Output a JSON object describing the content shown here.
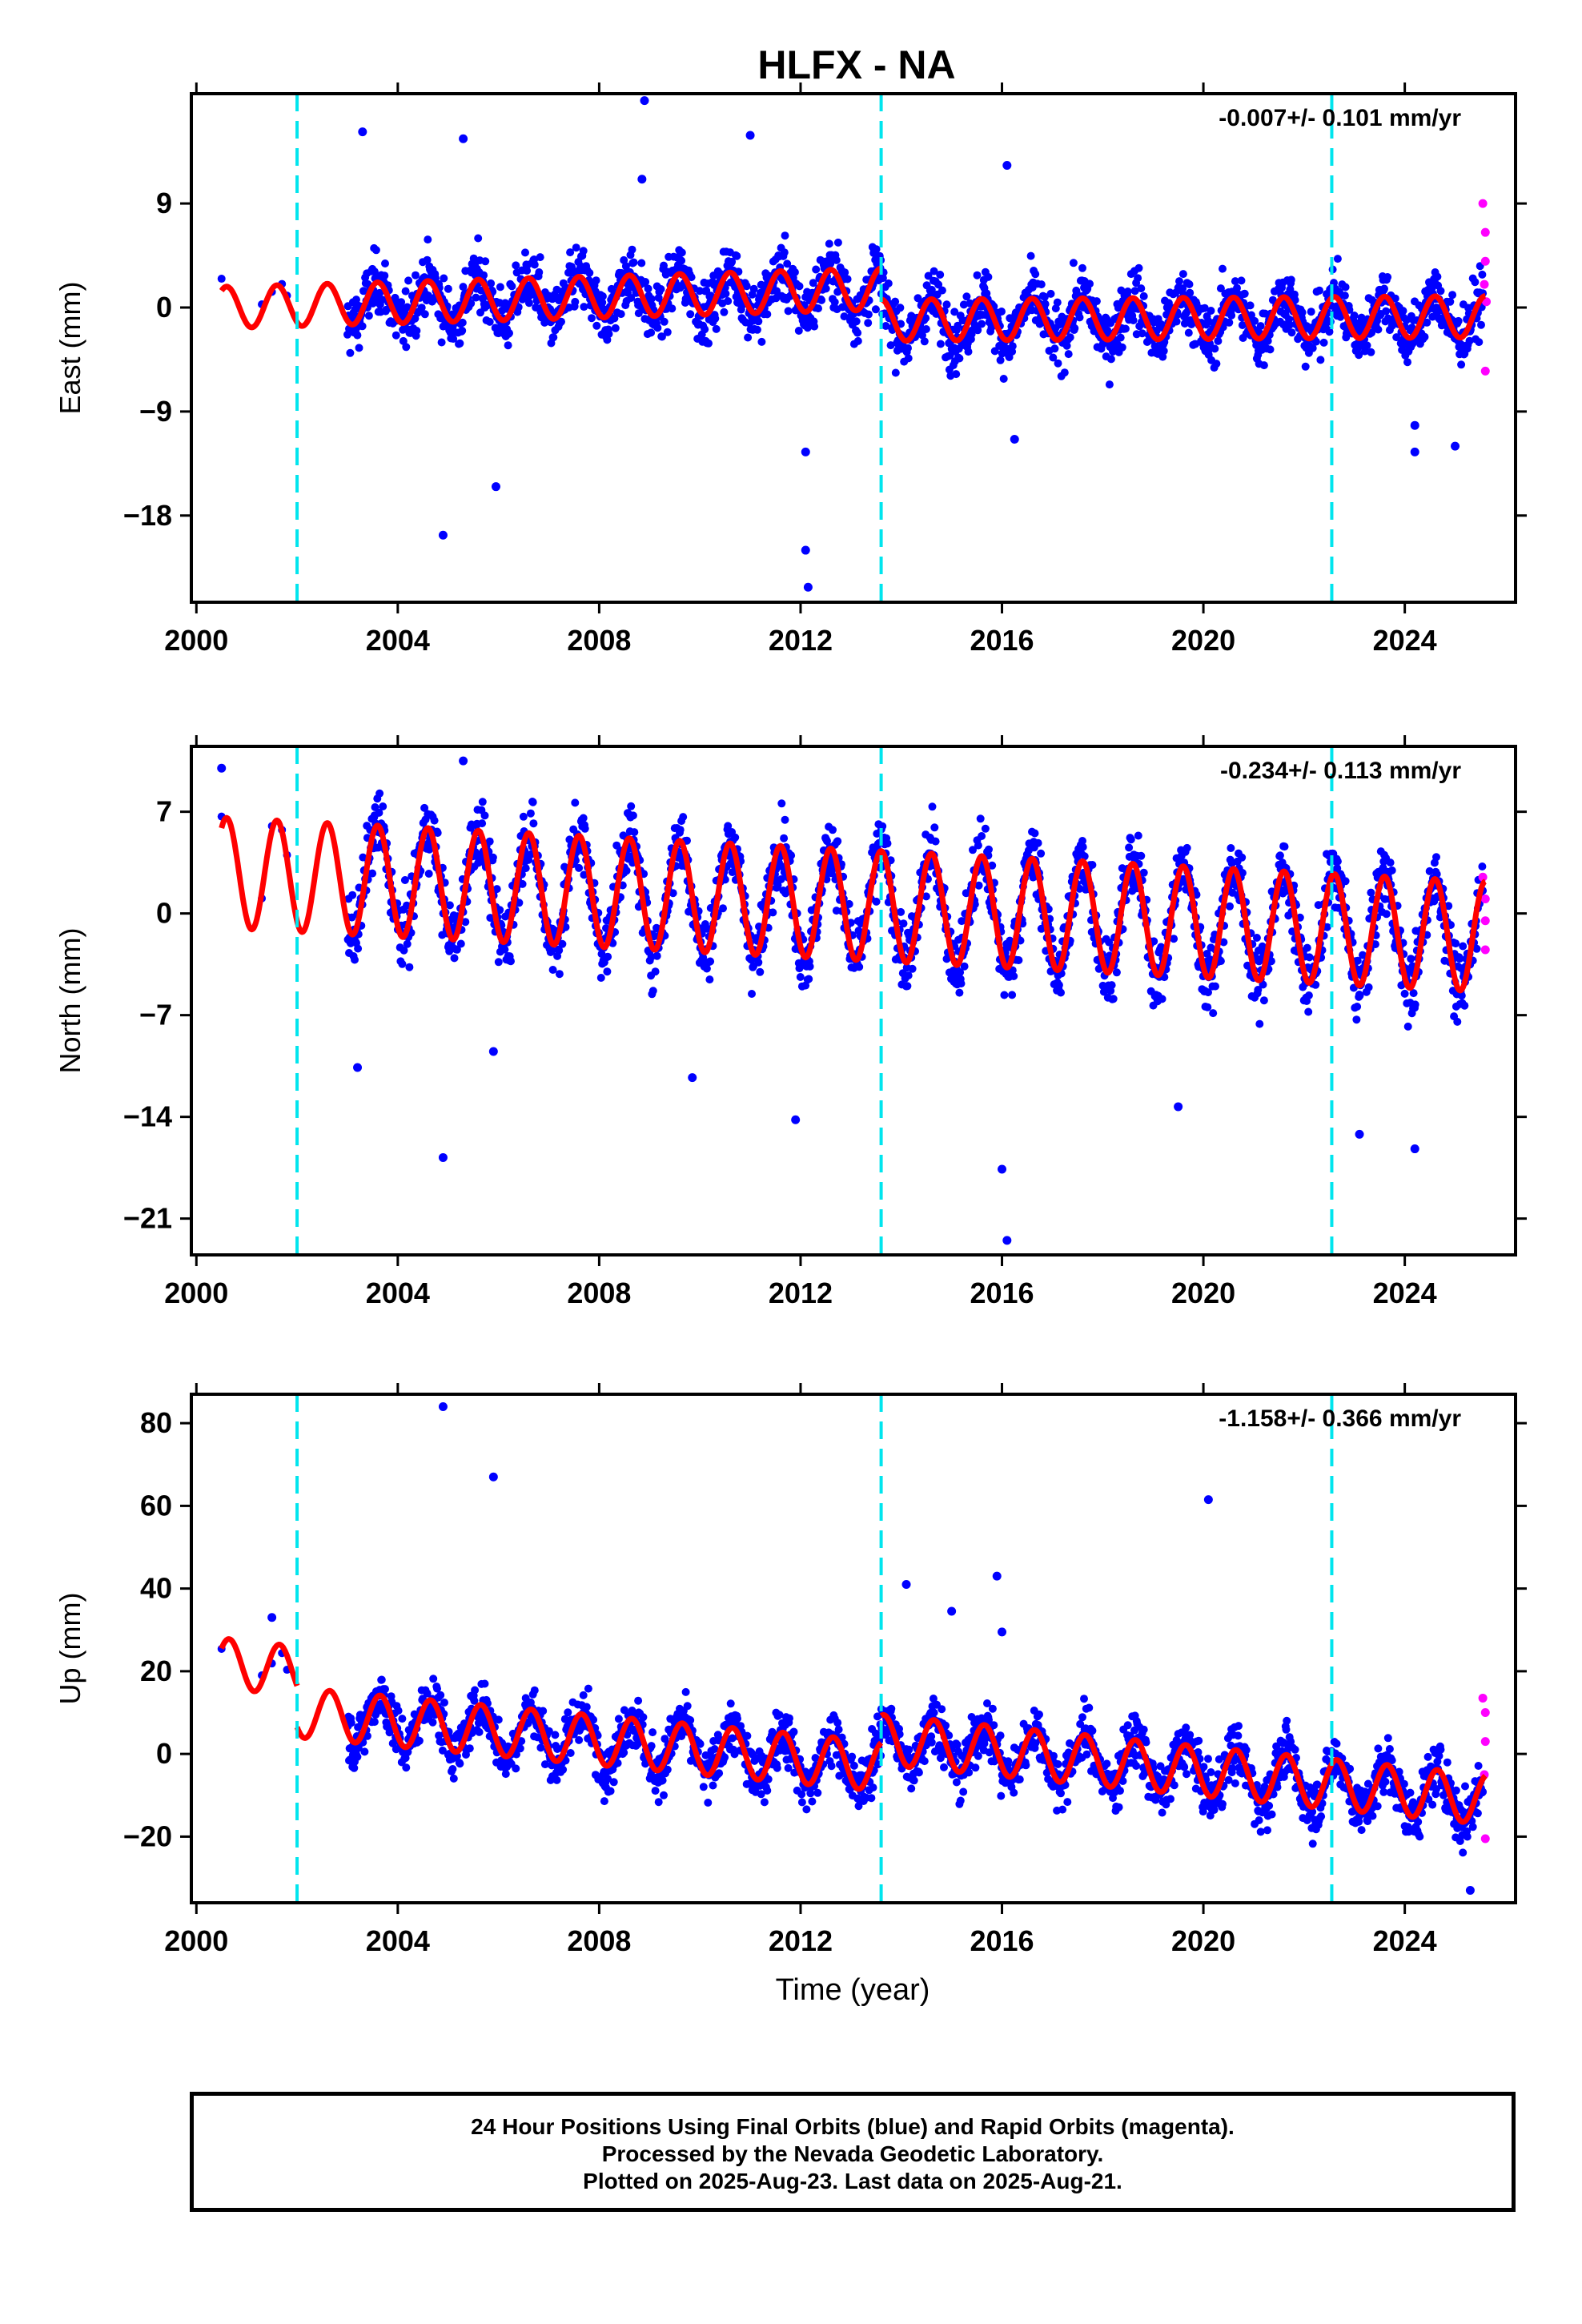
{
  "title": "HLFX - NA",
  "xlabel": "Time (year)",
  "footer": {
    "line1": "24 Hour Positions Using Final Orbits (blue) and Rapid Orbits (magenta).",
    "line2": "Processed by the Nevada Geodetic Laboratory.",
    "line3": "Plotted on 2025-Aug-23. Last data on 2025-Aug-21."
  },
  "colors": {
    "final": "#0000ff",
    "rapid": "#ff00ff",
    "model": "#ff0000",
    "offsets": "#00e5ee"
  },
  "chart_data": [
    {
      "type": "scatter",
      "ylabel": "East (mm)",
      "rate": "-0.007+/- 0.101 mm/yr",
      "xlim": [
        1999.9,
        2026.2
      ],
      "ylim": [
        -25.5,
        18.5
      ],
      "xticks": [
        2000,
        2004,
        2008,
        2012,
        2016,
        2020,
        2024
      ],
      "yticks": [
        9,
        0,
        -9,
        -18
      ],
      "ytick_labels": [
        "9",
        "0",
        "−9",
        "−18"
      ],
      "offset_lines": [
        2002.0,
        2013.6,
        2022.55
      ],
      "model": {
        "amp": 1.8,
        "phase": 0.35,
        "segments": [
          {
            "from": 2000.5,
            "to": 2013.6,
            "start": 0.0,
            "end": 1.6
          },
          {
            "from": 2013.6,
            "to": 2025.6,
            "start": -1.1,
            "end": -0.8
          }
        ]
      },
      "noise": 2.2,
      "outliers": [
        [
          2003.3,
          15.2
        ],
        [
          2005.3,
          14.6
        ],
        [
          2004.9,
          -19.7
        ],
        [
          2005.95,
          -15.5
        ],
        [
          2008.9,
          17.9
        ],
        [
          2008.85,
          11.1
        ],
        [
          2011.0,
          14.9
        ],
        [
          2012.1,
          -12.5
        ],
        [
          2012.1,
          -21.0
        ],
        [
          2012.15,
          -24.2
        ],
        [
          2016.1,
          12.3
        ],
        [
          2016.25,
          -11.4
        ],
        [
          2024.2,
          -12.5
        ],
        [
          2024.2,
          -10.2
        ],
        [
          2025.0,
          -12.0
        ]
      ],
      "rapid": [
        [
          2025.55,
          9.0
        ],
        [
          2025.6,
          6.5
        ],
        [
          2025.6,
          4.0
        ],
        [
          2025.58,
          2.0
        ],
        [
          2025.62,
          0.5
        ],
        [
          2025.6,
          -5.5
        ]
      ]
    },
    {
      "type": "scatter",
      "ylabel": "North (mm)",
      "rate": "-0.234+/- 0.113 mm/yr",
      "xlim": [
        1999.9,
        2026.2
      ],
      "ylim": [
        -23.5,
        11.5
      ],
      "xticks": [
        2000,
        2004,
        2008,
        2012,
        2016,
        2020,
        2024
      ],
      "yticks": [
        7,
        0,
        -7,
        -14,
        -21
      ],
      "ytick_labels": [
        "7",
        "0",
        "−7",
        "−14",
        "−21"
      ],
      "offset_lines": [
        2002.0,
        2013.6,
        2022.55
      ],
      "model": {
        "amp": 3.8,
        "phase": 0.35,
        "segments": [
          {
            "from": 2000.5,
            "to": 2025.6,
            "start": 2.8,
            "end": -1.6
          }
        ]
      },
      "noise": 2.0,
      "outliers": [
        [
          2000.5,
          10.0
        ],
        [
          2003.2,
          -10.6
        ],
        [
          2004.9,
          -16.8
        ],
        [
          2005.3,
          10.5
        ],
        [
          2005.9,
          -9.5
        ],
        [
          2009.85,
          -11.3
        ],
        [
          2011.9,
          -14.2
        ],
        [
          2016.0,
          -17.6
        ],
        [
          2016.1,
          -22.5
        ],
        [
          2019.5,
          -13.3
        ],
        [
          2023.1,
          -15.2
        ],
        [
          2024.2,
          -16.2
        ]
      ],
      "rapid": [
        [
          2025.55,
          2.5
        ],
        [
          2025.6,
          1.0
        ],
        [
          2025.6,
          -0.5
        ],
        [
          2025.6,
          -2.5
        ]
      ]
    },
    {
      "type": "scatter",
      "ylabel": "Up (mm)",
      "rate": "-1.158+/- 0.366 mm/yr",
      "xlim": [
        1999.9,
        2026.2
      ],
      "ylim": [
        -36,
        87
      ],
      "xticks": [
        2000,
        2004,
        2008,
        2012,
        2016,
        2020,
        2024
      ],
      "yticks": [
        80,
        60,
        40,
        20,
        0,
        -20
      ],
      "ytick_labels": [
        "80",
        "60",
        "40",
        "20",
        "0",
        "−20"
      ],
      "offset_lines": [
        2002.0,
        2013.6,
        2022.55
      ],
      "model": {
        "amp": 6.0,
        "phase": 0.4,
        "segments": [
          {
            "from": 2000.5,
            "to": 2002.0,
            "start": 22.0,
            "end": 20.0
          },
          {
            "from": 2002.0,
            "to": 2013.6,
            "start": 10.0,
            "end": -3.0
          },
          {
            "from": 2013.6,
            "to": 2025.6,
            "start": 3.5,
            "end": -11.0
          }
        ]
      },
      "noise": 5.5,
      "outliers": [
        [
          2004.9,
          84.0
        ],
        [
          2005.9,
          67.0
        ],
        [
          2014.1,
          41.0
        ],
        [
          2015.0,
          34.5
        ],
        [
          2015.9,
          43.0
        ],
        [
          2016.0,
          29.5
        ],
        [
          2020.1,
          61.5
        ],
        [
          2001.5,
          33.0
        ],
        [
          2025.3,
          -33.0
        ]
      ],
      "rapid": [
        [
          2025.55,
          13.5
        ],
        [
          2025.6,
          10.0
        ],
        [
          2025.6,
          3.0
        ],
        [
          2025.58,
          -5.0
        ],
        [
          2025.6,
          -20.5
        ]
      ]
    }
  ]
}
